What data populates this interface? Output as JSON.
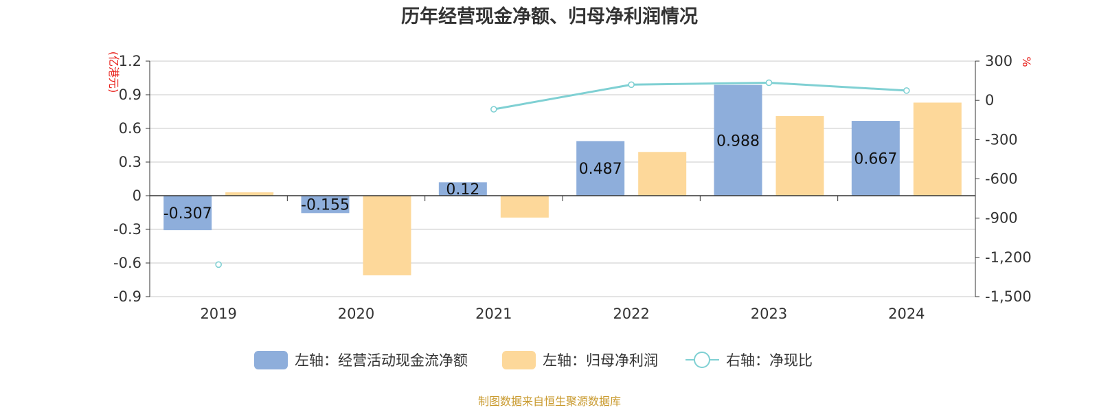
{
  "colors": {
    "cash": "#8eaedb",
    "profit": "#fdd89a",
    "ratio": "#7fd0d3",
    "unit": "#e8201b",
    "source": "#c99a2e",
    "axis": "#333333",
    "grid": "#c8c8c8"
  },
  "chart_data": {
    "type": "bar",
    "title": "历年经营现金净额、归母净利润情况",
    "categories": [
      "2019",
      "2020",
      "2021",
      "2022",
      "2023",
      "2024"
    ],
    "left_axis": {
      "unit": "(亿港元)",
      "ylim": [
        -0.9,
        1.2
      ],
      "ticks": [
        1.2,
        0.9,
        0.6,
        0.3,
        0,
        -0.3,
        -0.6,
        -0.9
      ],
      "tick_labels": [
        "1.2",
        "0.9",
        "0.6",
        "0.3",
        "0",
        "-0.3",
        "-0.6",
        "-0.9"
      ]
    },
    "right_axis": {
      "unit": "%",
      "ylim": [
        -1500,
        300
      ],
      "ticks": [
        300,
        0,
        -300,
        -600,
        -900,
        -1200,
        -1500
      ],
      "tick_labels": [
        "300",
        "0",
        "-300",
        "-600",
        "-900",
        "-1,200",
        "-1,500"
      ]
    },
    "series": [
      {
        "name": "左轴：经营活动现金流净额",
        "type": "bar",
        "axis": "left",
        "values": [
          -0.307,
          -0.155,
          0.12,
          0.487,
          0.988,
          0.667
        ],
        "labels": [
          "-0.307",
          "-0.155",
          "0.12",
          "0.487",
          "0.988",
          "0.667"
        ]
      },
      {
        "name": "左轴：归母净利润",
        "type": "bar",
        "axis": "left",
        "values": [
          0.03,
          -0.71,
          -0.195,
          0.39,
          0.71,
          0.83
        ]
      },
      {
        "name": "右轴：净现比",
        "type": "line",
        "axis": "right",
        "values": [
          -1255,
          null,
          -68,
          120,
          135,
          75
        ]
      }
    ],
    "grid": true,
    "legend_position": "bottom"
  },
  "footer": {
    "source": "制图数据来自恒生聚源数据库"
  }
}
